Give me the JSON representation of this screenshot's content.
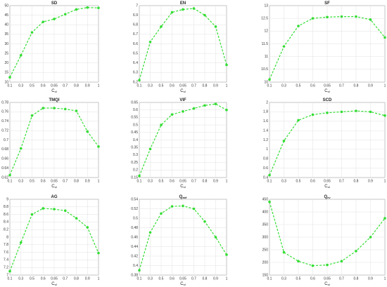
{
  "chart_data": [
    {
      "type": "line",
      "title": "SD",
      "xlabel": "C",
      "xlabel_sub": "sf",
      "color": "#33dd33",
      "grid": true,
      "categories": [
        "0.1",
        "0.3",
        "0.5",
        "0.6",
        "0.65",
        "0.7",
        "0.8",
        "0.9",
        "1"
      ],
      "values": [
        12.5,
        24,
        36,
        41.5,
        43,
        45.5,
        48,
        49,
        48.8
      ],
      "ylim": [
        10,
        50
      ],
      "yticks": [
        10,
        15,
        20,
        25,
        30,
        35,
        40,
        45,
        50
      ]
    },
    {
      "type": "line",
      "title": "EN",
      "xlabel": "C",
      "xlabel_sub": "sf",
      "color": "#33dd33",
      "grid": true,
      "categories": [
        "0.1",
        "0.3",
        "0.5",
        "0.6",
        "0.65",
        "0.7",
        "0.8",
        "0.9",
        "1"
      ],
      "values": [
        6.22,
        6.62,
        6.78,
        6.93,
        6.96,
        6.97,
        6.9,
        6.78,
        6.38
      ],
      "ylim": [
        6.2,
        7
      ],
      "yticks": [
        6.2,
        6.3,
        6.4,
        6.5,
        6.6,
        6.7,
        6.8,
        6.9,
        7
      ]
    },
    {
      "type": "line",
      "title": "SF",
      "xlabel": "C",
      "xlabel_sub": "sf",
      "color": "#33dd33",
      "grid": true,
      "categories": [
        "0.1",
        "0.3",
        "0.5",
        "0.6",
        "0.65",
        "0.7",
        "0.8",
        "0.9",
        "1"
      ],
      "values": [
        10.1,
        11.4,
        12.2,
        12.5,
        12.55,
        12.57,
        12.57,
        12.45,
        11.75
      ],
      "ylim": [
        10,
        13
      ],
      "yticks": [
        10,
        10.5,
        11,
        11.5,
        12,
        12.5,
        13
      ]
    },
    {
      "type": "line",
      "title": "TMQI",
      "xlabel": "C",
      "xlabel_sub": "sf",
      "color": "#33dd33",
      "grid": true,
      "categories": [
        "0.1",
        "0.3",
        "0.5",
        "0.6",
        "0.65",
        "0.7",
        "0.8",
        "0.9",
        "1"
      ],
      "values": [
        0.625,
        0.682,
        0.752,
        0.768,
        0.768,
        0.766,
        0.762,
        0.718,
        0.686
      ],
      "ylim": [
        0.62,
        0.78
      ],
      "yticks": [
        0.62,
        0.64,
        0.66,
        0.68,
        0.7,
        0.72,
        0.74,
        0.76,
        0.78
      ]
    },
    {
      "type": "line",
      "title": "VIF",
      "xlabel": "C",
      "xlabel_sub": "sf",
      "color": "#33dd33",
      "grid": true,
      "categories": [
        "0.1",
        "0.3",
        "0.5",
        "0.6",
        "0.65",
        "0.7",
        "0.8",
        "0.9",
        "1"
      ],
      "values": [
        0.16,
        0.34,
        0.5,
        0.57,
        0.59,
        0.61,
        0.63,
        0.64,
        0.6
      ],
      "ylim": [
        0.15,
        0.65
      ],
      "yticks": [
        0.15,
        0.2,
        0.25,
        0.3,
        0.35,
        0.4,
        0.45,
        0.5,
        0.55,
        0.6,
        0.65
      ]
    },
    {
      "type": "line",
      "title": "SCD",
      "xlabel": "C",
      "xlabel_sub": "sf",
      "color": "#33dd33",
      "grid": true,
      "categories": [
        "0.1",
        "0.3",
        "0.5",
        "0.6",
        "0.65",
        "0.7",
        "0.8",
        "0.9",
        "1"
      ],
      "values": [
        0.45,
        1.18,
        1.62,
        1.74,
        1.78,
        1.8,
        1.82,
        1.8,
        1.72
      ],
      "ylim": [
        0.4,
        2
      ],
      "yticks": [
        0.4,
        0.6,
        0.8,
        1,
        1.2,
        1.4,
        1.6,
        1.8,
        2
      ]
    },
    {
      "type": "line",
      "title": "AG",
      "xlabel": "C",
      "xlabel_sub": "sf",
      "color": "#33dd33",
      "grid": true,
      "categories": [
        "0.1",
        "0.3",
        "0.5",
        "0.6",
        "0.65",
        "0.7",
        "0.8",
        "0.9",
        "1"
      ],
      "values": [
        7.1,
        7.86,
        8.6,
        8.76,
        8.74,
        8.7,
        8.5,
        8.26,
        7.58
      ],
      "ylim": [
        7,
        9
      ],
      "yticks": [
        7,
        7.2,
        7.4,
        7.6,
        7.8,
        8,
        8.2,
        8.4,
        8.6,
        8.8,
        9
      ]
    },
    {
      "type": "line",
      "title": "Q",
      "title_sub": "abf",
      "xlabel": "C",
      "xlabel_sub": "sf",
      "color": "#33dd33",
      "grid": true,
      "categories": [
        "0.1",
        "0.3",
        "0.5",
        "0.6",
        "0.65",
        "0.7",
        "0.8",
        "0.9",
        "1"
      ],
      "values": [
        0.39,
        0.47,
        0.51,
        0.525,
        0.526,
        0.52,
        0.493,
        0.46,
        0.423
      ],
      "ylim": [
        0.38,
        0.54
      ],
      "yticks": [
        0.38,
        0.4,
        0.42,
        0.44,
        0.46,
        0.48,
        0.5,
        0.52,
        0.54
      ]
    },
    {
      "type": "line",
      "title": "Q",
      "title_sub": "ev",
      "xlabel": "C",
      "xlabel_sub": "sf",
      "color": "#33dd33",
      "grid": true,
      "categories": [
        "0.1",
        "0.3",
        "0.5",
        "0.6",
        "0.65",
        "0.7",
        "0.8",
        "0.9",
        "1"
      ],
      "values": [
        440,
        240,
        205,
        187,
        190,
        205,
        245,
        300,
        375
      ],
      "ylim": [
        150,
        450
      ],
      "yticks": [
        150,
        200,
        250,
        300,
        350,
        400,
        450
      ]
    }
  ]
}
